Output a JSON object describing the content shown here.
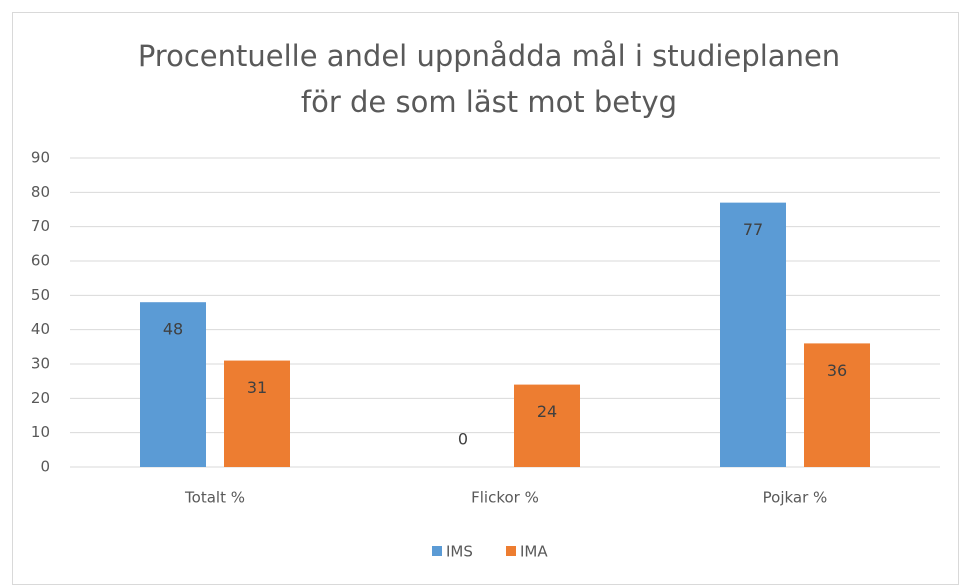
{
  "chart_data": {
    "type": "bar",
    "title": [
      "Procentuelle andel uppnådda mål i studieplanen",
      "för de som läst mot betyg"
    ],
    "categories": [
      "Totalt %",
      "Flickor %",
      "Pojkar %"
    ],
    "series": [
      {
        "name": "IMS",
        "color": "#5b9bd5",
        "values": [
          48,
          0,
          77
        ]
      },
      {
        "name": "IMA",
        "color": "#ed7d31",
        "values": [
          31,
          24,
          36
        ]
      }
    ],
    "ylim": [
      0,
      90
    ],
    "yticks": [
      0,
      10,
      20,
      30,
      40,
      50,
      60,
      70,
      80,
      90
    ],
    "grid": true,
    "legend": "bottom"
  }
}
